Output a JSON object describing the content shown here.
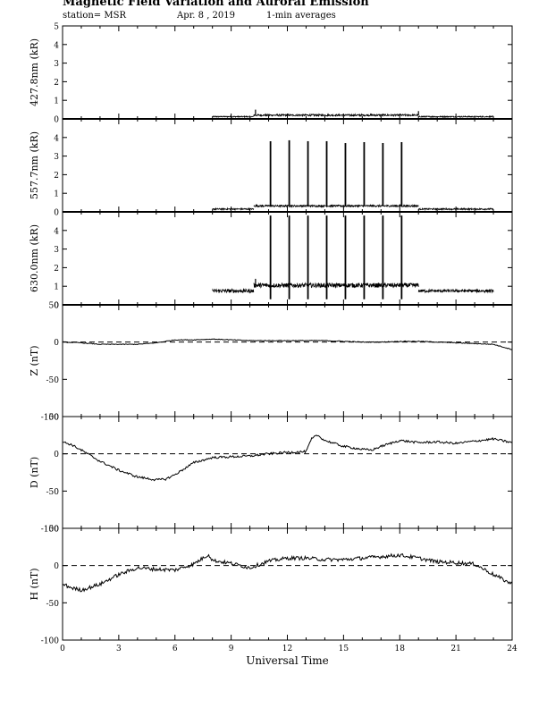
{
  "header": {
    "title": "Magnetic Field Variation and Auroral Emission",
    "station": "station= MSR",
    "date": "Apr. 8  , 2019",
    "averaging": "1-min averages"
  },
  "chart_data": [
    {
      "type": "line",
      "ylabel": "427.8nm (kR)",
      "ylim": [
        0,
        5
      ],
      "yticks": [
        0,
        1,
        2,
        3,
        4,
        5
      ],
      "xlim": [
        0,
        24
      ],
      "baseline": 0,
      "data_range": [
        8,
        23
      ],
      "segments": [
        {
          "x": [
            8.0,
            10.2
          ],
          "base": 0.12,
          "noise": 0.03
        },
        {
          "x": [
            10.2,
            19.0
          ],
          "base": 0.2,
          "noise": 0.05,
          "spikes": [
            {
              "x": 10.3,
              "y": 0.5
            },
            {
              "x": 19.0,
              "y": 0.42
            }
          ]
        },
        {
          "x": [
            19.0,
            23.0
          ],
          "base": 0.12,
          "noise": 0.03
        }
      ]
    },
    {
      "type": "line",
      "ylabel": "557.7nm (kR)",
      "ylim": [
        0,
        5
      ],
      "yticks": [
        0,
        1,
        2,
        3,
        4
      ],
      "xlim": [
        0,
        24
      ],
      "baseline": 0,
      "data_range": [
        8,
        23
      ],
      "segments": [
        {
          "x": [
            8.0,
            10.2
          ],
          "base": 0.15,
          "noise": 0.04
        },
        {
          "x": [
            10.2,
            19.0
          ],
          "base": 0.32,
          "noise": 0.05
        },
        {
          "x": [
            19.0,
            23.0
          ],
          "base": 0.15,
          "noise": 0.04
        }
      ],
      "spikes": [
        {
          "x": 11.1,
          "y": 3.8
        },
        {
          "x": 12.1,
          "y": 3.85
        },
        {
          "x": 13.1,
          "y": 3.8
        },
        {
          "x": 14.1,
          "y": 3.8
        },
        {
          "x": 15.1,
          "y": 3.7
        },
        {
          "x": 16.1,
          "y": 3.75
        },
        {
          "x": 17.1,
          "y": 3.7
        },
        {
          "x": 18.1,
          "y": 3.75
        }
      ]
    },
    {
      "type": "line",
      "ylabel": "630.0nm (kR)",
      "ylim": [
        0,
        5
      ],
      "yticks": [
        0,
        1,
        2,
        3,
        4
      ],
      "xlim": [
        0,
        24
      ],
      "baseline": 0,
      "data_range": [
        8,
        23
      ],
      "segments": [
        {
          "x": [
            8.0,
            10.2
          ],
          "base": 0.75,
          "noise": 0.1
        },
        {
          "x": [
            10.2,
            19.0
          ],
          "base": 1.05,
          "noise": 0.12,
          "spikes": [
            {
              "x": 10.3,
              "y": 1.4
            }
          ]
        },
        {
          "x": [
            19.0,
            23.0
          ],
          "base": 0.75,
          "noise": 0.08
        }
      ],
      "spikes": [
        {
          "x": 11.1,
          "y": 4.8
        },
        {
          "x": 12.1,
          "y": 4.8
        },
        {
          "x": 13.1,
          "y": 4.8
        },
        {
          "x": 14.1,
          "y": 4.8
        },
        {
          "x": 15.1,
          "y": 4.8
        },
        {
          "x": 16.1,
          "y": 4.8
        },
        {
          "x": 17.1,
          "y": 4.8
        },
        {
          "x": 18.1,
          "y": 4.8
        }
      ]
    },
    {
      "type": "line",
      "ylabel": "Z (nT)",
      "ylim": [
        -100,
        50
      ],
      "yticks": [
        -100,
        -50,
        0,
        50
      ],
      "xlim": [
        0,
        24
      ],
      "dashed_zero": true,
      "x": [
        0,
        1,
        2,
        3,
        4,
        5,
        6,
        7,
        8,
        9,
        10,
        11,
        12,
        13,
        14,
        15,
        16,
        17,
        18,
        19,
        20,
        21,
        22,
        23,
        24
      ],
      "y": [
        0,
        -1,
        -3,
        -3,
        -3,
        -1,
        3,
        3,
        4,
        3,
        2,
        2,
        2,
        2,
        2,
        1,
        0,
        0,
        1,
        1,
        0,
        -1,
        -2,
        -3,
        -10
      ],
      "noise": 0.5
    },
    {
      "type": "line",
      "ylabel": "D (nT)",
      "ylim": [
        -100,
        50
      ],
      "yticks": [
        -100,
        -50,
        0,
        50
      ],
      "xlim": [
        0,
        24
      ],
      "dashed_zero": true,
      "x": [
        0,
        0.5,
        1,
        2,
        3,
        4,
        5,
        5.5,
        6,
        6.5,
        7,
        8,
        9,
        10,
        11,
        12,
        13,
        13.3,
        13.6,
        14,
        15,
        16,
        16.5,
        17,
        18,
        19,
        20,
        21,
        22,
        23,
        24
      ],
      "y": [
        16,
        12,
        5,
        -10,
        -22,
        -31,
        -35,
        -34,
        -28,
        -20,
        -12,
        -5,
        -4,
        -3,
        0,
        2,
        3,
        20,
        25,
        18,
        10,
        6,
        5,
        10,
        18,
        15,
        16,
        14,
        17,
        20,
        15
      ],
      "noise": 1.5
    },
    {
      "type": "line",
      "ylabel": "H (nT)",
      "ylim": [
        -100,
        50
      ],
      "yticks": [
        -100,
        -50,
        0,
        50
      ],
      "xlim": [
        0,
        24
      ],
      "dashed_zero": true,
      "x": [
        0,
        0.5,
        1,
        2,
        3,
        4,
        5,
        6,
        7,
        7.8,
        8,
        9,
        10,
        11,
        12,
        13,
        14,
        15,
        16,
        17,
        18,
        19,
        20,
        21,
        22,
        23,
        24
      ],
      "y": [
        -25,
        -30,
        -33,
        -25,
        -12,
        -3,
        -5,
        -6,
        2,
        15,
        7,
        3,
        -3,
        6,
        10,
        10,
        8,
        8,
        10,
        12,
        14,
        10,
        5,
        4,
        2,
        -12,
        -25
      ],
      "noise": 2.5
    }
  ],
  "x_axis": {
    "label": "Universal Time",
    "ticks": [
      "0",
      "3",
      "6",
      "9",
      "12",
      "15",
      "18",
      "21",
      "24"
    ]
  }
}
